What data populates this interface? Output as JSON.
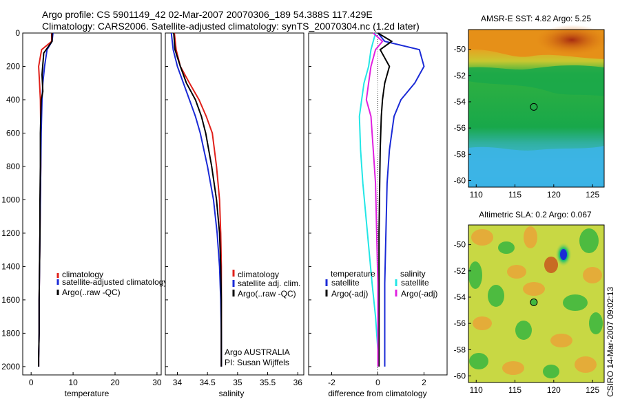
{
  "header": {
    "line1": "Argo profile: CS 5901149_42 02-Mar-2007 20070306_189 54.388S 117.429E",
    "line2": "Climatology: CARS2006. Satellite-adjusted climatology: synTS_20070304.nc (1.2d later)"
  },
  "side_credit": "CSIRO 14-Mar-2007 09:02:13",
  "colors": {
    "climatology": "#e0201a",
    "satellite": "#1a2ad6",
    "argo": "#000000",
    "cyan": "#22e6e6",
    "magenta": "#e020e0"
  },
  "chart_data": [
    {
      "type": "line",
      "xlabel": "temperature",
      "xlim": [
        -2,
        31
      ],
      "xticks": [
        0,
        10,
        20,
        30
      ],
      "ylim": [
        2050,
        0
      ],
      "yticks": [
        0,
        200,
        400,
        600,
        800,
        1000,
        1200,
        1400,
        1600,
        1800,
        2000
      ],
      "legend": [
        "climatology",
        "satellite-adjusted climatology",
        "Argo(..raw -QC)"
      ],
      "series": [
        {
          "name": "climatology",
          "color": "climatology",
          "x": [
            4.9,
            4.9,
            2.5,
            1.8,
            2.0,
            2.2,
            2.3,
            2.3,
            2.2,
            2.1,
            2.0,
            1.9,
            1.9,
            1.8,
            1.8
          ],
          "y": [
            0,
            50,
            100,
            200,
            300,
            400,
            600,
            800,
            1000,
            1200,
            1400,
            1600,
            1800,
            1950,
            2000
          ]
        },
        {
          "name": "satellite-adjusted climatology",
          "color": "satellite",
          "x": [
            5.2,
            5.0,
            3.8,
            3.2,
            2.8,
            2.6,
            2.4,
            2.3,
            2.2,
            2.1,
            2.0,
            1.9,
            1.9,
            1.8,
            1.8
          ],
          "y": [
            0,
            50,
            100,
            200,
            300,
            400,
            600,
            800,
            1000,
            1200,
            1400,
            1600,
            1800,
            1950,
            2000
          ]
        },
        {
          "name": "Argo(..raw -QC)",
          "color": "argo",
          "x": [
            5.0,
            5.0,
            3.0,
            2.6,
            2.8,
            2.4,
            2.2,
            2.2,
            2.1,
            2.1,
            2.0,
            1.9,
            1.9,
            1.8,
            1.8
          ],
          "y": [
            0,
            50,
            120,
            250,
            350,
            400,
            600,
            800,
            1000,
            1200,
            1400,
            1600,
            1800,
            1950,
            2000
          ]
        }
      ]
    },
    {
      "type": "line",
      "xlabel": "salinity",
      "xlim": [
        33.8,
        36.1
      ],
      "xticks": [
        34,
        34.5,
        35,
        35.5,
        36
      ],
      "ylim": [
        2050,
        0
      ],
      "legend": [
        "climatology",
        "satellite adj. clim.",
        "Argo(..raw -QC)"
      ],
      "annotation": [
        "Argo AUSTRALIA",
        "PI: Susan Wijffels"
      ],
      "series": [
        {
          "name": "climatology",
          "color": "climatology",
          "x": [
            33.95,
            33.98,
            34.05,
            34.2,
            34.36,
            34.48,
            34.58,
            34.65,
            34.7,
            34.72,
            34.73,
            34.73,
            34.73,
            34.73
          ],
          "y": [
            0,
            100,
            200,
            300,
            400,
            500,
            600,
            800,
            1000,
            1200,
            1400,
            1600,
            1800,
            2000
          ]
        },
        {
          "name": "satellite adj. clim.",
          "color": "satellite",
          "x": [
            33.9,
            33.93,
            34.0,
            34.1,
            34.2,
            34.3,
            34.38,
            34.5,
            34.6,
            34.66,
            34.7,
            34.72,
            34.73,
            34.73
          ],
          "y": [
            0,
            100,
            200,
            300,
            400,
            500,
            600,
            800,
            1000,
            1200,
            1400,
            1600,
            1800,
            2000
          ]
        },
        {
          "name": "Argo(..raw -QC)",
          "color": "argo",
          "x": [
            33.94,
            33.96,
            34.05,
            34.15,
            34.3,
            34.4,
            34.47,
            34.57,
            34.65,
            34.7,
            34.72,
            34.73,
            34.73,
            34.73
          ],
          "y": [
            0,
            100,
            200,
            300,
            400,
            500,
            600,
            800,
            1000,
            1200,
            1400,
            1600,
            1800,
            2000
          ]
        }
      ]
    },
    {
      "type": "line",
      "xlabel": "difference from climatology",
      "xlim": [
        -3,
        3
      ],
      "xticks": [
        -2,
        0,
        2
      ],
      "ylim": [
        2050,
        0
      ],
      "legend_left_title": "temperature",
      "legend_right_title": "salinity",
      "legend": [
        "satellite",
        "Argo(-adj)",
        "satellite",
        "Argo(-adj)"
      ],
      "series": [
        {
          "name": "temperature satellite",
          "color": "satellite",
          "x": [
            0.0,
            0.3,
            1.8,
            2.0,
            1.6,
            1.0,
            0.7,
            0.5,
            0.4,
            0.35,
            0.3,
            0.3,
            0.3,
            0.3
          ],
          "y": [
            0,
            50,
            100,
            200,
            300,
            400,
            500,
            700,
            900,
            1200,
            1500,
            1700,
            1900,
            2000
          ]
        },
        {
          "name": "temperature Argo(-adj)",
          "color": "argo",
          "x": [
            0.0,
            0.6,
            0.1,
            0.5,
            0.3,
            0.2,
            0.15,
            0.1,
            0.08,
            0.05,
            0.05,
            0.05,
            0.05,
            0.05
          ],
          "y": [
            0,
            50,
            100,
            200,
            300,
            400,
            500,
            700,
            900,
            1200,
            1500,
            1700,
            1900,
            2000
          ]
        },
        {
          "name": "salinity satellite",
          "color": "cyan",
          "x": [
            -0.1,
            -0.2,
            -0.3,
            -0.4,
            -0.6,
            -0.7,
            -0.8,
            -0.75,
            -0.65,
            -0.45,
            -0.25,
            -0.1,
            0.0,
            0.0
          ],
          "y": [
            0,
            50,
            100,
            200,
            300,
            400,
            500,
            700,
            900,
            1200,
            1500,
            1700,
            1900,
            2000
          ]
        },
        {
          "name": "salinity Argo(-adj)",
          "color": "magenta",
          "x": [
            -0.2,
            0.2,
            -0.1,
            -0.3,
            -0.4,
            -0.5,
            -0.3,
            -0.2,
            -0.1,
            -0.05,
            0.0,
            0.0,
            0.0,
            0.0
          ],
          "y": [
            0,
            50,
            100,
            200,
            300,
            400,
            500,
            700,
            900,
            1200,
            1500,
            1700,
            1900,
            2000
          ]
        }
      ]
    },
    {
      "type": "heatmap",
      "title": "AMSR-E SST: 4.82 Argo: 5.25",
      "xlim": [
        109,
        126.5
      ],
      "ylim": [
        -60.5,
        -48.5
      ],
      "xticks": [
        110,
        115,
        120,
        125
      ],
      "yticks": [
        -50,
        -52,
        -54,
        -56,
        -58,
        -60
      ],
      "marker": {
        "lon": 117.43,
        "lat": -54.39
      }
    },
    {
      "type": "heatmap",
      "title": "Altimetric SLA: 0.2 Argo: 0.067",
      "xlim": [
        109,
        126.5
      ],
      "ylim": [
        -60.5,
        -48.5
      ],
      "xticks": [
        110,
        115,
        120,
        125
      ],
      "yticks": [
        -50,
        -52,
        -54,
        -56,
        -58,
        -60
      ],
      "marker": {
        "lon": 117.43,
        "lat": -54.39
      }
    }
  ]
}
